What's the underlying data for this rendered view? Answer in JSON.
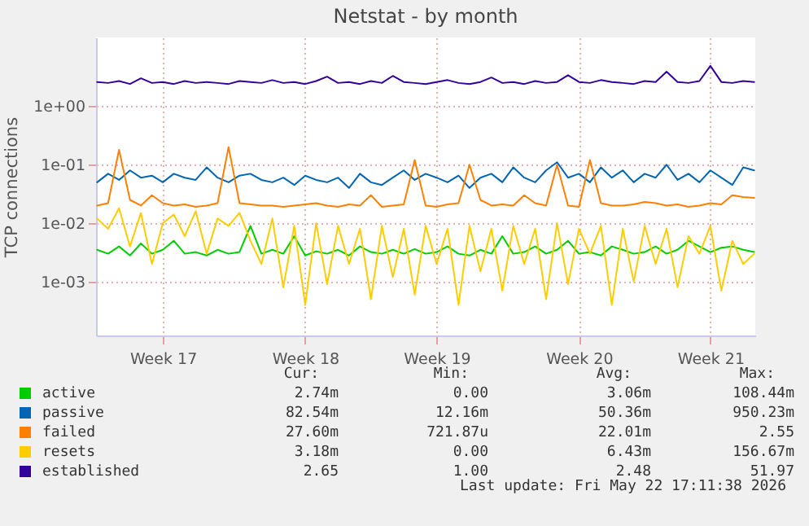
{
  "chart_data": {
    "type": "line",
    "title": "Netstat - by month",
    "ylabel": "TCP connections",
    "log": "y",
    "grid": true,
    "legend": "bottom",
    "line_style": "solid",
    "marker": "none",
    "categories": [
      null,
      null,
      null,
      null,
      null,
      null,
      "Week 17",
      null,
      null,
      null,
      null,
      null,
      null,
      null,
      null,
      null,
      null,
      null,
      null,
      "Week 18",
      null,
      null,
      null,
      null,
      null,
      null,
      null,
      null,
      null,
      null,
      null,
      "Week 19",
      null,
      null,
      null,
      null,
      null,
      null,
      null,
      null,
      null,
      null,
      null,
      null,
      "Week 20",
      null,
      null,
      null,
      null,
      null,
      null,
      null,
      null,
      null,
      null,
      null,
      "Week 21",
      null,
      null,
      null,
      null
    ],
    "ylim": [
      0.00012,
      15
    ],
    "yticks": [
      {
        "value": 0.001,
        "label": "1e-03"
      },
      {
        "value": 0.01,
        "label": "1e-02"
      },
      {
        "value": 0.1,
        "label": "1e-01"
      },
      {
        "value": 1,
        "label": "1e+00"
      }
    ],
    "series": [
      {
        "name": "active",
        "color": "#00cc00",
        "values": [
          0.0035,
          0.003,
          0.004,
          0.0028,
          0.0045,
          0.003,
          0.0035,
          0.005,
          0.003,
          0.0032,
          0.0028,
          0.0035,
          0.003,
          0.0032,
          0.009,
          0.003,
          0.0035,
          0.003,
          0.006,
          0.0028,
          0.0033,
          0.003,
          0.0035,
          0.0028,
          0.004,
          0.0032,
          0.003,
          0.0035,
          0.003,
          0.0036,
          0.003,
          0.0032,
          0.004,
          0.003,
          0.0028,
          0.0035,
          0.003,
          0.006,
          0.003,
          0.0032,
          0.004,
          0.003,
          0.0035,
          0.005,
          0.003,
          0.0032,
          0.0028,
          0.004,
          0.0035,
          0.003,
          0.0032,
          0.004,
          0.003,
          0.0035,
          0.005,
          0.004,
          0.0032,
          0.0038,
          0.004,
          0.0035,
          0.0032
        ]
      },
      {
        "name": "passive",
        "color": "#0066b3",
        "values": [
          0.05,
          0.07,
          0.055,
          0.08,
          0.06,
          0.065,
          0.05,
          0.07,
          0.06,
          0.055,
          0.09,
          0.06,
          0.05,
          0.065,
          0.07,
          0.055,
          0.05,
          0.06,
          0.045,
          0.065,
          0.055,
          0.05,
          0.06,
          0.04,
          0.07,
          0.05,
          0.045,
          0.06,
          0.08,
          0.055,
          0.07,
          0.06,
          0.05,
          0.065,
          0.04,
          0.06,
          0.07,
          0.05,
          0.09,
          0.06,
          0.05,
          0.08,
          0.11,
          0.06,
          0.07,
          0.05,
          0.09,
          0.06,
          0.08,
          0.05,
          0.07,
          0.06,
          0.1,
          0.055,
          0.07,
          0.05,
          0.08,
          0.06,
          0.045,
          0.09,
          0.08
        ]
      },
      {
        "name": "failed",
        "color": "#ff8000",
        "values": [
          0.02,
          0.022,
          0.18,
          0.025,
          0.02,
          0.03,
          0.022,
          0.02,
          0.021,
          0.019,
          0.02,
          0.022,
          0.2,
          0.022,
          0.021,
          0.02,
          0.02,
          0.019,
          0.02,
          0.021,
          0.022,
          0.02,
          0.019,
          0.021,
          0.02,
          0.03,
          0.019,
          0.02,
          0.021,
          0.12,
          0.02,
          0.019,
          0.021,
          0.022,
          0.1,
          0.025,
          0.02,
          0.021,
          0.02,
          0.03,
          0.022,
          0.02,
          0.1,
          0.02,
          0.019,
          0.12,
          0.022,
          0.02,
          0.02,
          0.021,
          0.023,
          0.022,
          0.02,
          0.021,
          0.019,
          0.02,
          0.022,
          0.021,
          0.03,
          0.028,
          0.027
        ]
      },
      {
        "name": "resets",
        "color": "#ffcc00",
        "values": [
          0.012,
          0.008,
          0.018,
          0.004,
          0.015,
          0.002,
          0.01,
          0.014,
          0.006,
          0.016,
          0.003,
          0.012,
          0.009,
          0.015,
          0.005,
          0.002,
          0.012,
          0.0008,
          0.009,
          0.0004,
          0.01,
          0.0009,
          0.009,
          0.002,
          0.008,
          0.0005,
          0.009,
          0.0012,
          0.008,
          0.0006,
          0.009,
          0.002,
          0.008,
          0.0004,
          0.009,
          0.0015,
          0.008,
          0.0007,
          0.009,
          0.002,
          0.008,
          0.0005,
          0.01,
          0.0009,
          0.008,
          0.003,
          0.009,
          0.0004,
          0.008,
          0.001,
          0.009,
          0.002,
          0.008,
          0.0008,
          0.006,
          0.003,
          0.009,
          0.0007,
          0.005,
          0.002,
          0.003
        ]
      },
      {
        "name": "established",
        "color": "#330099",
        "values": [
          2.6,
          2.5,
          2.7,
          2.4,
          3.0,
          2.5,
          2.6,
          2.4,
          2.7,
          2.5,
          2.6,
          2.5,
          2.4,
          2.7,
          2.6,
          2.5,
          2.8,
          2.5,
          2.6,
          2.4,
          2.7,
          3.2,
          2.5,
          2.6,
          2.4,
          2.7,
          2.5,
          3.3,
          2.6,
          2.5,
          2.4,
          2.6,
          2.8,
          2.5,
          2.4,
          2.6,
          3.1,
          2.5,
          2.6,
          2.4,
          2.7,
          2.5,
          2.6,
          3.4,
          2.6,
          2.5,
          2.8,
          2.6,
          2.5,
          2.4,
          2.7,
          2.6,
          3.9,
          2.6,
          2.5,
          2.7,
          4.9,
          2.6,
          2.5,
          2.7,
          2.6
        ]
      }
    ],
    "annotations": [
      "Cur:",
      "Min:",
      "Avg:",
      "Max:",
      "2.74m",
      "0.00",
      "3.06m",
      "108.44m",
      "82.54m",
      "12.16m",
      "50.36m",
      "950.23m",
      "27.60m",
      "721.87u",
      "22.01m",
      "2.55",
      "3.18m",
      "0.00",
      "6.43m",
      "156.67m",
      "2.65",
      "1.00",
      "2.48",
      "51.97",
      "Last update: Fri May 22 17:11:38 2026"
    ]
  }
}
